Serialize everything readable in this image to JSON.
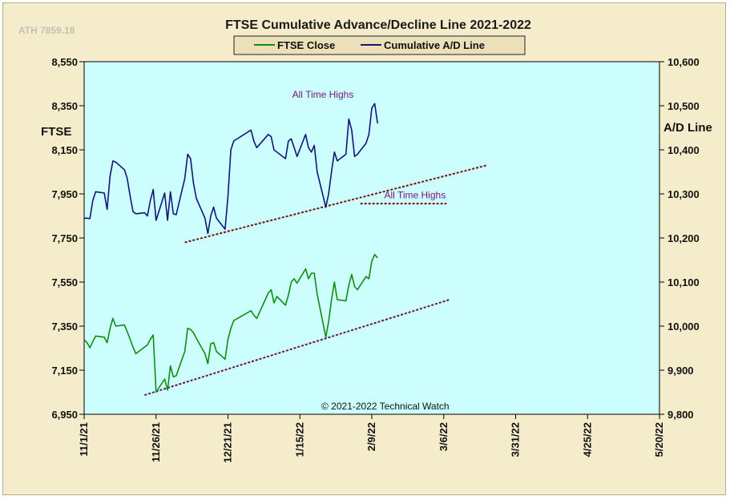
{
  "watermark": "ATH 7859.18",
  "credit": "© 2021-2022  Technical Watch",
  "chart_data": {
    "type": "line",
    "title": "FTSE Cumulative  Advance/Decline  Line 2021-2022",
    "y_left_label": "FTSE",
    "y_right_label": "A/D Line",
    "y_left_ticks": [
      "8,550",
      "8,350",
      "8,150",
      "7,950",
      "7,750",
      "7,550",
      "7,350",
      "7,150",
      "6,950"
    ],
    "y_right_ticks": [
      "10,600",
      "10,500",
      "10,400",
      "10,300",
      "10,200",
      "10,100",
      "10,000",
      "9,900",
      "9,800"
    ],
    "x_tick_labels": [
      "11/1/21",
      "11/26/21",
      "12/21/21",
      "1/15/22",
      "2/9/22",
      "3/6/22",
      "3/31/22",
      "4/25/22",
      "5/20/22"
    ],
    "x_ticks": [
      "2021-11-01",
      "2021-11-26",
      "2021-12-21",
      "2022-01-15",
      "2022-02-09",
      "2022-03-06",
      "2022-03-31",
      "2022-04-25",
      "2022-05-20"
    ],
    "xlim": [
      "2021-11-01",
      "2022-05-20"
    ],
    "ylim_left": [
      6950,
      8550
    ],
    "ylim_right": [
      9800,
      10600
    ],
    "legend_position": "top-center",
    "series": [
      {
        "name": "FTSE Close",
        "axis": "left",
        "color": "#118c11",
        "points": [
          [
            "2021-11-01",
            7288
          ],
          [
            "2021-11-02",
            7275
          ],
          [
            "2021-11-03",
            7252
          ],
          [
            "2021-11-04",
            7280
          ],
          [
            "2021-11-05",
            7305
          ],
          [
            "2021-11-08",
            7300
          ],
          [
            "2021-11-09",
            7275
          ],
          [
            "2021-11-10",
            7340
          ],
          [
            "2021-11-11",
            7385
          ],
          [
            "2021-11-12",
            7350
          ],
          [
            "2021-11-15",
            7355
          ],
          [
            "2021-11-16",
            7325
          ],
          [
            "2021-11-17",
            7290
          ],
          [
            "2021-11-18",
            7255
          ],
          [
            "2021-11-19",
            7225
          ],
          [
            "2021-11-22",
            7255
          ],
          [
            "2021-11-23",
            7265
          ],
          [
            "2021-11-24",
            7290
          ],
          [
            "2021-11-25",
            7310
          ],
          [
            "2021-11-26",
            7050
          ],
          [
            "2021-11-29",
            7110
          ],
          [
            "2021-11-30",
            7060
          ],
          [
            "2021-12-01",
            7170
          ],
          [
            "2021-12-02",
            7120
          ],
          [
            "2021-12-03",
            7125
          ],
          [
            "2021-12-06",
            7235
          ],
          [
            "2021-12-07",
            7340
          ],
          [
            "2021-12-08",
            7335
          ],
          [
            "2021-12-09",
            7320
          ],
          [
            "2021-12-10",
            7295
          ],
          [
            "2021-12-13",
            7225
          ],
          [
            "2021-12-14",
            7180
          ],
          [
            "2021-12-15",
            7270
          ],
          [
            "2021-12-16",
            7275
          ],
          [
            "2021-12-17",
            7235
          ],
          [
            "2021-12-20",
            7200
          ],
          [
            "2021-12-21",
            7290
          ],
          [
            "2021-12-22",
            7340
          ],
          [
            "2021-12-23",
            7375
          ],
          [
            "2021-12-29",
            7420
          ],
          [
            "2021-12-30",
            7400
          ],
          [
            "2021-12-31",
            7385
          ],
          [
            "2022-01-04",
            7500
          ],
          [
            "2022-01-05",
            7515
          ],
          [
            "2022-01-06",
            7455
          ],
          [
            "2022-01-07",
            7485
          ],
          [
            "2022-01-10",
            7445
          ],
          [
            "2022-01-11",
            7490
          ],
          [
            "2022-01-12",
            7550
          ],
          [
            "2022-01-13",
            7565
          ],
          [
            "2022-01-14",
            7545
          ],
          [
            "2022-01-17",
            7610
          ],
          [
            "2022-01-18",
            7565
          ],
          [
            "2022-01-19",
            7590
          ],
          [
            "2022-01-20",
            7590
          ],
          [
            "2022-01-21",
            7495
          ],
          [
            "2022-01-24",
            7300
          ],
          [
            "2022-01-25",
            7370
          ],
          [
            "2022-01-26",
            7470
          ],
          [
            "2022-01-27",
            7550
          ],
          [
            "2022-01-28",
            7470
          ],
          [
            "2022-01-31",
            7465
          ],
          [
            "2022-02-01",
            7535
          ],
          [
            "2022-02-02",
            7585
          ],
          [
            "2022-02-03",
            7530
          ],
          [
            "2022-02-04",
            7515
          ],
          [
            "2022-02-07",
            7575
          ],
          [
            "2022-02-08",
            7565
          ],
          [
            "2022-02-09",
            7645
          ],
          [
            "2022-02-10",
            7675
          ],
          [
            "2022-02-11",
            7660
          ]
        ]
      },
      {
        "name": "Cumulative A/D Line",
        "axis": "right",
        "color": "#151575",
        "points": [
          [
            "2021-11-01",
            10245
          ],
          [
            "2021-11-02",
            10245
          ],
          [
            "2021-11-03",
            10244
          ],
          [
            "2021-11-04",
            10285
          ],
          [
            "2021-11-05",
            10305
          ],
          [
            "2021-11-08",
            10302
          ],
          [
            "2021-11-09",
            10265
          ],
          [
            "2021-11-10",
            10340
          ],
          [
            "2021-11-11",
            10375
          ],
          [
            "2021-11-12",
            10372
          ],
          [
            "2021-11-15",
            10355
          ],
          [
            "2021-11-16",
            10335
          ],
          [
            "2021-11-17",
            10295
          ],
          [
            "2021-11-18",
            10260
          ],
          [
            "2021-11-19",
            10255
          ],
          [
            "2021-11-22",
            10257
          ],
          [
            "2021-11-23",
            10250
          ],
          [
            "2021-11-24",
            10285
          ],
          [
            "2021-11-25",
            10310
          ],
          [
            "2021-11-26",
            10240
          ],
          [
            "2021-11-29",
            10302
          ],
          [
            "2021-11-30",
            10240
          ],
          [
            "2021-12-01",
            10305
          ],
          [
            "2021-12-02",
            10255
          ],
          [
            "2021-12-03",
            10253
          ],
          [
            "2021-12-06",
            10335
          ],
          [
            "2021-12-07",
            10390
          ],
          [
            "2021-12-08",
            10380
          ],
          [
            "2021-12-09",
            10325
          ],
          [
            "2021-12-10",
            10290
          ],
          [
            "2021-12-13",
            10245
          ],
          [
            "2021-12-14",
            10210
          ],
          [
            "2021-12-15",
            10250
          ],
          [
            "2021-12-16",
            10270
          ],
          [
            "2021-12-17",
            10245
          ],
          [
            "2021-12-20",
            10220
          ],
          [
            "2021-12-21",
            10295
          ],
          [
            "2021-12-22",
            10400
          ],
          [
            "2021-12-23",
            10420
          ],
          [
            "2021-12-29",
            10445
          ],
          [
            "2021-12-30",
            10420
          ],
          [
            "2021-12-31",
            10405
          ],
          [
            "2022-01-04",
            10435
          ],
          [
            "2022-01-05",
            10430
          ],
          [
            "2022-01-06",
            10400
          ],
          [
            "2022-01-07",
            10395
          ],
          [
            "2022-01-10",
            10380
          ],
          [
            "2022-01-11",
            10420
          ],
          [
            "2022-01-12",
            10425
          ],
          [
            "2022-01-13",
            10405
          ],
          [
            "2022-01-14",
            10385
          ],
          [
            "2022-01-17",
            10435
          ],
          [
            "2022-01-18",
            10405
          ],
          [
            "2022-01-19",
            10395
          ],
          [
            "2022-01-20",
            10410
          ],
          [
            "2022-01-21",
            10350
          ],
          [
            "2022-01-24",
            10270
          ],
          [
            "2022-01-25",
            10300
          ],
          [
            "2022-01-26",
            10350
          ],
          [
            "2022-01-27",
            10395
          ],
          [
            "2022-01-28",
            10375
          ],
          [
            "2022-01-31",
            10390
          ],
          [
            "2022-02-01",
            10470
          ],
          [
            "2022-02-02",
            10445
          ],
          [
            "2022-02-03",
            10385
          ],
          [
            "2022-02-04",
            10390
          ],
          [
            "2022-02-07",
            10415
          ],
          [
            "2022-02-08",
            10435
          ],
          [
            "2022-02-09",
            10495
          ],
          [
            "2022-02-10",
            10505
          ],
          [
            "2022-02-11",
            10460
          ]
        ]
      }
    ],
    "trendlines": [
      {
        "axis": "right",
        "from": [
          "2021-12-06",
          10190
        ],
        "to": [
          "2022-03-21",
          10365
        ],
        "color": "#7a1010"
      },
      {
        "axis": "right",
        "from": [
          "2022-02-05",
          10278
        ],
        "to": [
          "2022-03-07",
          10278
        ],
        "color": "#7a1010"
      },
      {
        "axis": "left",
        "from": [
          "2021-11-22",
          7037
        ],
        "to": [
          "2022-03-08",
          7470
        ],
        "color": "#6a1060"
      }
    ],
    "annotations": [
      {
        "text": "All Time Highs",
        "x": "2022-01-23",
        "y": 10518,
        "axis": "right",
        "color": "#7a1478"
      },
      {
        "text": "All Time Highs",
        "x": "2022-02-24",
        "y": 10290,
        "axis": "right",
        "color": "#7a1478"
      }
    ]
  }
}
